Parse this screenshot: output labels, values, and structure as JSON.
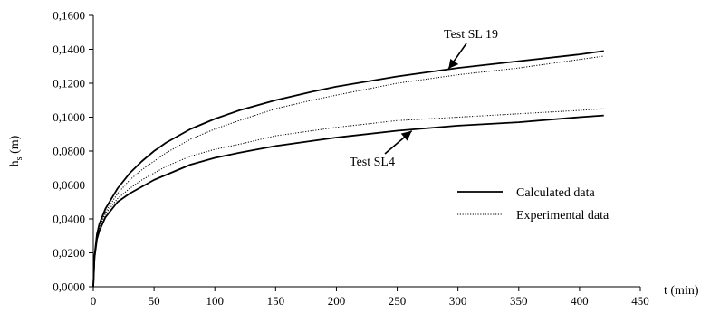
{
  "chart_data": {
    "type": "line",
    "title": "",
    "xlabel": "t (min)",
    "ylabel_main": "h",
    "ylabel_sub": "s",
    "ylabel_unit": " (m)",
    "xlim": [
      0,
      450
    ],
    "ylim": [
      0,
      0.16
    ],
    "x_ticks": [
      0,
      50,
      100,
      150,
      200,
      250,
      300,
      350,
      400,
      450
    ],
    "x_tick_labels": [
      "0",
      "50",
      "100",
      "150",
      "200",
      "250",
      "300",
      "350",
      "400",
      "450"
    ],
    "y_ticks": [
      0,
      0.02,
      0.04,
      0.06,
      0.08,
      0.1,
      0.12,
      0.14,
      0.16
    ],
    "y_tick_labels": [
      "0,0000",
      "0,0200",
      "0,0400",
      "0,0600",
      "0,0800",
      "0,1000",
      "0,1200",
      "0,1400",
      "0,1600"
    ],
    "grid": false,
    "legend": {
      "placement": "right",
      "entries": [
        {
          "label": "Calculated data",
          "style": "solid"
        },
        {
          "label": "Experimental data",
          "style": "dotted"
        }
      ]
    },
    "annotations": [
      {
        "text": "Test SL 19",
        "x": 290,
        "y": 0.128
      },
      {
        "text": "Test SL4",
        "x": 265,
        "y": 0.093
      }
    ],
    "series": [
      {
        "test": "SL 19",
        "kind": "calculated",
        "style": "solid",
        "x": [
          0,
          1,
          3,
          5,
          10,
          20,
          30,
          40,
          50,
          60,
          80,
          100,
          120,
          150,
          180,
          200,
          250,
          300,
          350,
          400,
          420
        ],
        "y": [
          0,
          0.018,
          0.031,
          0.037,
          0.046,
          0.058,
          0.067,
          0.074,
          0.08,
          0.085,
          0.093,
          0.099,
          0.104,
          0.11,
          0.115,
          0.118,
          0.124,
          0.129,
          0.133,
          0.137,
          0.139
        ]
      },
      {
        "test": "SL 19",
        "kind": "experimental",
        "style": "dotted",
        "x": [
          0,
          1,
          3,
          5,
          10,
          20,
          30,
          40,
          50,
          60,
          80,
          100,
          120,
          150,
          180,
          200,
          250,
          300,
          350,
          400,
          420
        ],
        "y": [
          0,
          0.016,
          0.029,
          0.035,
          0.044,
          0.055,
          0.063,
          0.069,
          0.074,
          0.079,
          0.087,
          0.093,
          0.098,
          0.105,
          0.11,
          0.113,
          0.12,
          0.125,
          0.129,
          0.134,
          0.136
        ]
      },
      {
        "test": "SL4",
        "kind": "calculated",
        "style": "solid",
        "x": [
          0,
          1,
          3,
          5,
          10,
          20,
          30,
          40,
          50,
          60,
          80,
          100,
          120,
          150,
          180,
          200,
          250,
          300,
          350,
          400,
          420
        ],
        "y": [
          0,
          0.017,
          0.028,
          0.033,
          0.041,
          0.05,
          0.055,
          0.059,
          0.063,
          0.066,
          0.072,
          0.076,
          0.079,
          0.083,
          0.086,
          0.088,
          0.092,
          0.095,
          0.097,
          0.1,
          0.101
        ]
      },
      {
        "test": "SL4",
        "kind": "experimental",
        "style": "dotted",
        "x": [
          0,
          1,
          3,
          5,
          10,
          20,
          30,
          40,
          50,
          60,
          80,
          100,
          120,
          150,
          180,
          200,
          250,
          300,
          350,
          400,
          420
        ],
        "y": [
          0,
          0.017,
          0.029,
          0.035,
          0.043,
          0.052,
          0.058,
          0.063,
          0.067,
          0.071,
          0.077,
          0.081,
          0.084,
          0.089,
          0.092,
          0.094,
          0.098,
          0.1,
          0.102,
          0.104,
          0.105
        ]
      }
    ]
  }
}
